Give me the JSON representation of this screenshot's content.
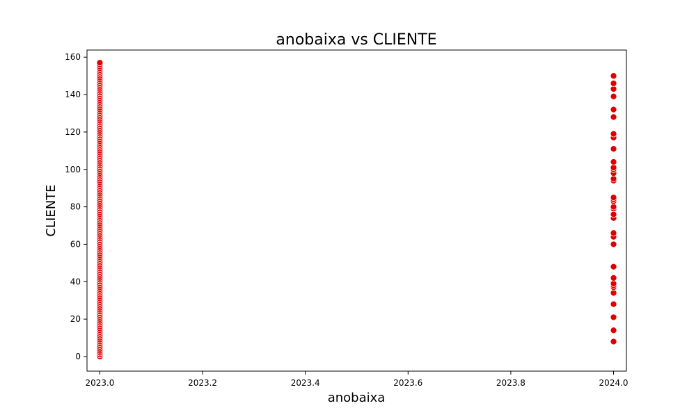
{
  "chart_data": {
    "type": "scatter",
    "title": "anobaixa vs CLIENTE",
    "xlabel": "anobaixa",
    "ylabel": "CLIENTE",
    "xlim": [
      2022.975,
      2024.025
    ],
    "ylim": [
      -7.8,
      163.8
    ],
    "x_ticks": [
      "2023.0",
      "2023.2",
      "2023.4",
      "2023.6",
      "2023.8",
      "2024.0"
    ],
    "y_ticks": [
      "0",
      "20",
      "40",
      "60",
      "80",
      "100",
      "120",
      "140",
      "160"
    ],
    "grid": false,
    "legend": "none",
    "colors": {
      "marker_fill": "#e00000",
      "marker_edge": "#ffffff",
      "axes": "#000000"
    },
    "series": [
      {
        "x_value": 2023.0,
        "values": [
          0,
          1,
          2,
          3,
          4,
          5,
          6,
          7,
          8,
          9,
          10,
          11,
          12,
          13,
          14,
          15,
          16,
          17,
          18,
          19,
          20,
          21,
          22,
          23,
          24,
          25,
          26,
          27,
          28,
          29,
          30,
          31,
          32,
          33,
          34,
          35,
          36,
          37,
          38,
          39,
          40,
          41,
          42,
          43,
          44,
          45,
          46,
          47,
          48,
          49,
          50,
          51,
          52,
          53,
          54,
          55,
          56,
          57,
          58,
          59,
          60,
          61,
          62,
          63,
          64,
          65,
          66,
          67,
          68,
          69,
          70,
          71,
          72,
          73,
          74,
          75,
          76,
          77,
          78,
          79,
          80,
          81,
          82,
          83,
          84,
          85,
          86,
          87,
          88,
          89,
          90,
          91,
          92,
          93,
          94,
          95,
          96,
          97,
          98,
          99,
          100,
          101,
          102,
          103,
          104,
          105,
          106,
          107,
          108,
          109,
          110,
          111,
          112,
          113,
          114,
          115,
          116,
          117,
          118,
          119,
          120,
          121,
          122,
          123,
          124,
          125,
          126,
          127,
          128,
          129,
          130,
          131,
          132,
          133,
          134,
          135,
          136,
          137,
          138,
          139,
          140,
          141,
          142,
          143,
          144,
          145,
          146,
          147,
          148,
          149,
          150,
          151,
          152,
          153,
          154,
          155,
          156,
          157
        ]
      },
      {
        "x_value": 2024.0,
        "values": [
          8,
          14,
          21,
          28,
          34,
          37,
          38,
          39,
          42,
          48,
          60,
          64,
          66,
          74,
          76,
          79,
          80,
          83,
          84,
          85,
          94,
          95,
          98,
          100,
          101,
          104,
          111,
          117,
          119,
          128,
          132,
          139,
          143,
          146,
          150
        ]
      }
    ]
  }
}
